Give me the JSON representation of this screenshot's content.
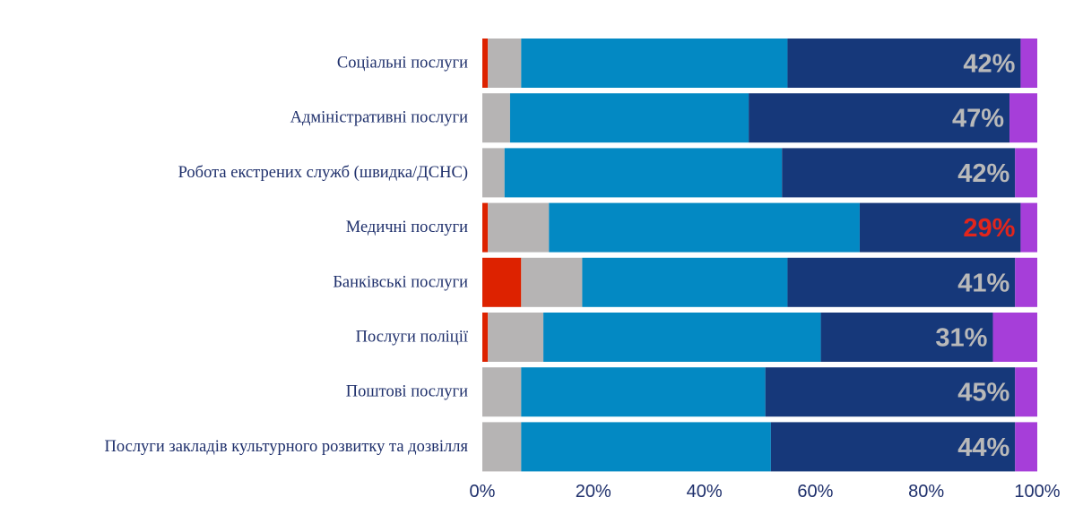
{
  "chart_data": {
    "type": "bar",
    "orientation": "horizontal",
    "stacked": true,
    "percent_stacked": true,
    "title": "",
    "xlabel": "",
    "ylabel": "",
    "xlim": [
      0,
      100
    ],
    "x_ticks": [
      "0%",
      "20%",
      "40%",
      "60%",
      "80%",
      "100%"
    ],
    "grid": false,
    "legend": "none",
    "categories": [
      "Соціальні послуги",
      "Адміністративні послуги",
      "Робота екстрених служб (швидка/ДСНС)",
      "Медичні послуги",
      "Банківські послуги",
      "Послуги поліції",
      "Поштові послуги",
      "Послуги закладів культурного розвитку та дозвілля"
    ],
    "series": [
      {
        "color": "#dd2200",
        "values": [
          1,
          0,
          0,
          1,
          7,
          1,
          0,
          0
        ]
      },
      {
        "color": "#b6b4b4",
        "values": [
          6,
          5,
          4,
          11,
          11,
          10,
          7,
          7
        ]
      },
      {
        "color": "#0389c3",
        "values": [
          48,
          43,
          50,
          56,
          37,
          50,
          44,
          45
        ]
      },
      {
        "color": "#16387a",
        "values": [
          42,
          47,
          42,
          29,
          41,
          31,
          45,
          44
        ]
      },
      {
        "color": "#a63ed9",
        "values": [
          3,
          5,
          4,
          3,
          4,
          8,
          4,
          4
        ]
      }
    ],
    "data_labels": [
      "42%",
      "47%",
      "42%",
      "29%",
      "41%",
      "31%",
      "45%",
      "44%"
    ],
    "data_label_colors": [
      "#b9b9b9",
      "#b9b9b9",
      "#b9b9b9",
      "#e2251c",
      "#b9b9b9",
      "#b9b9b9",
      "#b9b9b9",
      "#b9b9b9"
    ]
  }
}
